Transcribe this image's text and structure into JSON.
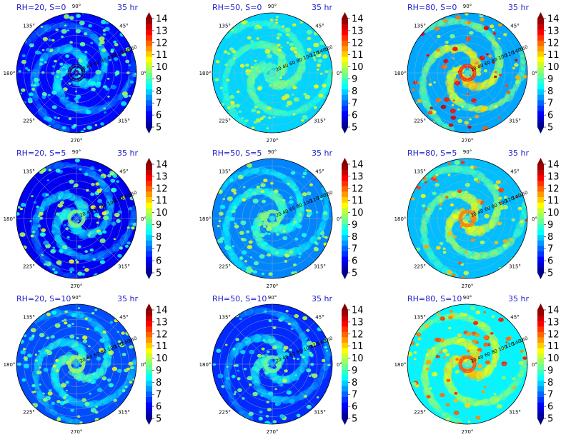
{
  "figure": {
    "time_label": "35 hr"
  },
  "chart_data": [
    {
      "type": "heatmap",
      "projection": "polar",
      "title": "RH=20, S=0",
      "time": "35 hr",
      "row": 0,
      "col": 0,
      "radial_ticks": [
        20,
        40,
        60,
        80,
        100,
        120,
        140,
        160
      ],
      "angle_ticks": [
        "0°",
        "45°",
        "90°",
        "135°",
        "180°",
        "225°",
        "270°",
        "315°"
      ],
      "colorbar_ticks": [
        5,
        6,
        7,
        8,
        9,
        10,
        11,
        12,
        13,
        14
      ],
      "colorbar_range": [
        5,
        14
      ],
      "colormap": "jet",
      "background_level": 6.2,
      "center_level": 5.2,
      "peak_level": 10.0,
      "cell_density": 0.55
    },
    {
      "type": "heatmap",
      "projection": "polar",
      "title": "RH=50, S=0",
      "time": "35 hr",
      "row": 0,
      "col": 1,
      "radial_ticks": [
        20,
        40,
        60,
        80,
        100,
        120,
        140,
        160
      ],
      "angle_ticks": [
        "0°",
        "45°",
        "90°",
        "135°",
        "180°",
        "225°",
        "270°",
        "315°"
      ],
      "colorbar_ticks": [
        5,
        6,
        7,
        8,
        9,
        10,
        11,
        12,
        13,
        14
      ],
      "colorbar_range": [
        5,
        14
      ],
      "colormap": "jet",
      "background_level": 8.0,
      "center_level": 8.8,
      "peak_level": 10.8,
      "cell_density": 0.45
    },
    {
      "type": "heatmap",
      "projection": "polar",
      "title": "RH=80, S=0",
      "time": "35 hr",
      "row": 0,
      "col": 2,
      "radial_ticks": [
        20,
        40,
        60,
        80,
        100,
        120,
        140,
        160
      ],
      "angle_ticks": [
        "0°",
        "45°",
        "90°",
        "135°",
        "180°",
        "225°",
        "270°",
        "315°"
      ],
      "colorbar_ticks": [
        5,
        6,
        7,
        8,
        9,
        10,
        11,
        12,
        13,
        14
      ],
      "colorbar_range": [
        5,
        14
      ],
      "colormap": "jet",
      "background_level": 7.6,
      "center_level": 12.5,
      "peak_level": 13.5,
      "cell_density": 0.35
    },
    {
      "type": "heatmap",
      "projection": "polar",
      "title": "RH=20, S=5",
      "time": "35 hr",
      "row": 1,
      "col": 0,
      "radial_ticks": [
        20,
        40,
        60,
        80,
        100,
        120,
        140,
        160
      ],
      "angle_ticks": [
        "0°",
        "45°",
        "90°",
        "135°",
        "180°",
        "225°",
        "270°",
        "315°"
      ],
      "colorbar_ticks": [
        5,
        6,
        7,
        8,
        9,
        10,
        11,
        12,
        13,
        14
      ],
      "colorbar_range": [
        5,
        14
      ],
      "colormap": "jet",
      "background_level": 6.0,
      "center_level": 9.5,
      "peak_level": 10.5,
      "cell_density": 0.5
    },
    {
      "type": "heatmap",
      "projection": "polar",
      "title": "RH=50, S=5",
      "time": "35 hr",
      "row": 1,
      "col": 1,
      "radial_ticks": [
        20,
        40,
        60,
        80,
        100,
        120,
        140,
        160
      ],
      "angle_ticks": [
        "0°",
        "45°",
        "90°",
        "135°",
        "180°",
        "225°",
        "270°",
        "315°"
      ],
      "colorbar_ticks": [
        5,
        6,
        7,
        8,
        9,
        10,
        11,
        12,
        13,
        14
      ],
      "colorbar_range": [
        5,
        14
      ],
      "colormap": "jet",
      "background_level": 7.3,
      "center_level": 9.5,
      "peak_level": 10.6,
      "cell_density": 0.45
    },
    {
      "type": "heatmap",
      "projection": "polar",
      "title": "RH=80, S=5",
      "time": "35 hr",
      "row": 1,
      "col": 2,
      "radial_ticks": [
        20,
        40,
        60,
        80,
        100,
        120,
        140,
        160
      ],
      "angle_ticks": [
        "0°",
        "45°",
        "90°",
        "135°",
        "180°",
        "225°",
        "270°",
        "315°"
      ],
      "colorbar_ticks": [
        5,
        6,
        7,
        8,
        9,
        10,
        11,
        12,
        13,
        14
      ],
      "colorbar_range": [
        5,
        14
      ],
      "colormap": "jet",
      "background_level": 7.8,
      "center_level": 11.8,
      "peak_level": 12.5,
      "cell_density": 0.35
    },
    {
      "type": "heatmap",
      "projection": "polar",
      "title": "RH=20, S=10",
      "time": "35 hr",
      "row": 2,
      "col": 0,
      "radial_ticks": [
        20,
        40,
        60,
        80,
        100,
        120,
        140,
        160
      ],
      "angle_ticks": [
        "0°",
        "45°",
        "90°",
        "135°",
        "180°",
        "225°",
        "270°",
        "315°"
      ],
      "colorbar_ticks": [
        5,
        6,
        7,
        8,
        9,
        10,
        11,
        12,
        13,
        14
      ],
      "colorbar_range": [
        5,
        14
      ],
      "colormap": "jet",
      "background_level": 6.8,
      "center_level": 9.8,
      "peak_level": 10.6,
      "cell_density": 0.5
    },
    {
      "type": "heatmap",
      "projection": "polar",
      "title": "RH=50, S=10",
      "time": "35 hr",
      "row": 2,
      "col": 1,
      "radial_ticks": [
        20,
        40,
        60,
        80,
        100,
        120,
        140,
        160
      ],
      "angle_ticks": [
        "0°",
        "45°",
        "90°",
        "135°",
        "180°",
        "225°",
        "270°",
        "315°"
      ],
      "colorbar_ticks": [
        5,
        6,
        7,
        8,
        9,
        10,
        11,
        12,
        13,
        14
      ],
      "colorbar_range": [
        5,
        14
      ],
      "colormap": "jet",
      "background_level": 6.5,
      "center_level": 9.2,
      "peak_level": 10.2,
      "cell_density": 0.4
    },
    {
      "type": "heatmap",
      "projection": "polar",
      "title": "RH=80, S=10",
      "time": "35 hr",
      "row": 2,
      "col": 2,
      "radial_ticks": [
        20,
        40,
        60,
        80,
        100,
        120,
        140,
        160
      ],
      "angle_ticks": [
        "0°",
        "45°",
        "90°",
        "135°",
        "180°",
        "225°",
        "270°",
        "315°"
      ],
      "colorbar_ticks": [
        5,
        6,
        7,
        8,
        9,
        10,
        11,
        12,
        13,
        14
      ],
      "colorbar_range": [
        5,
        14
      ],
      "colormap": "jet",
      "background_level": 8.3,
      "center_level": 12.2,
      "peak_level": 12.8,
      "cell_density": 0.35
    }
  ]
}
